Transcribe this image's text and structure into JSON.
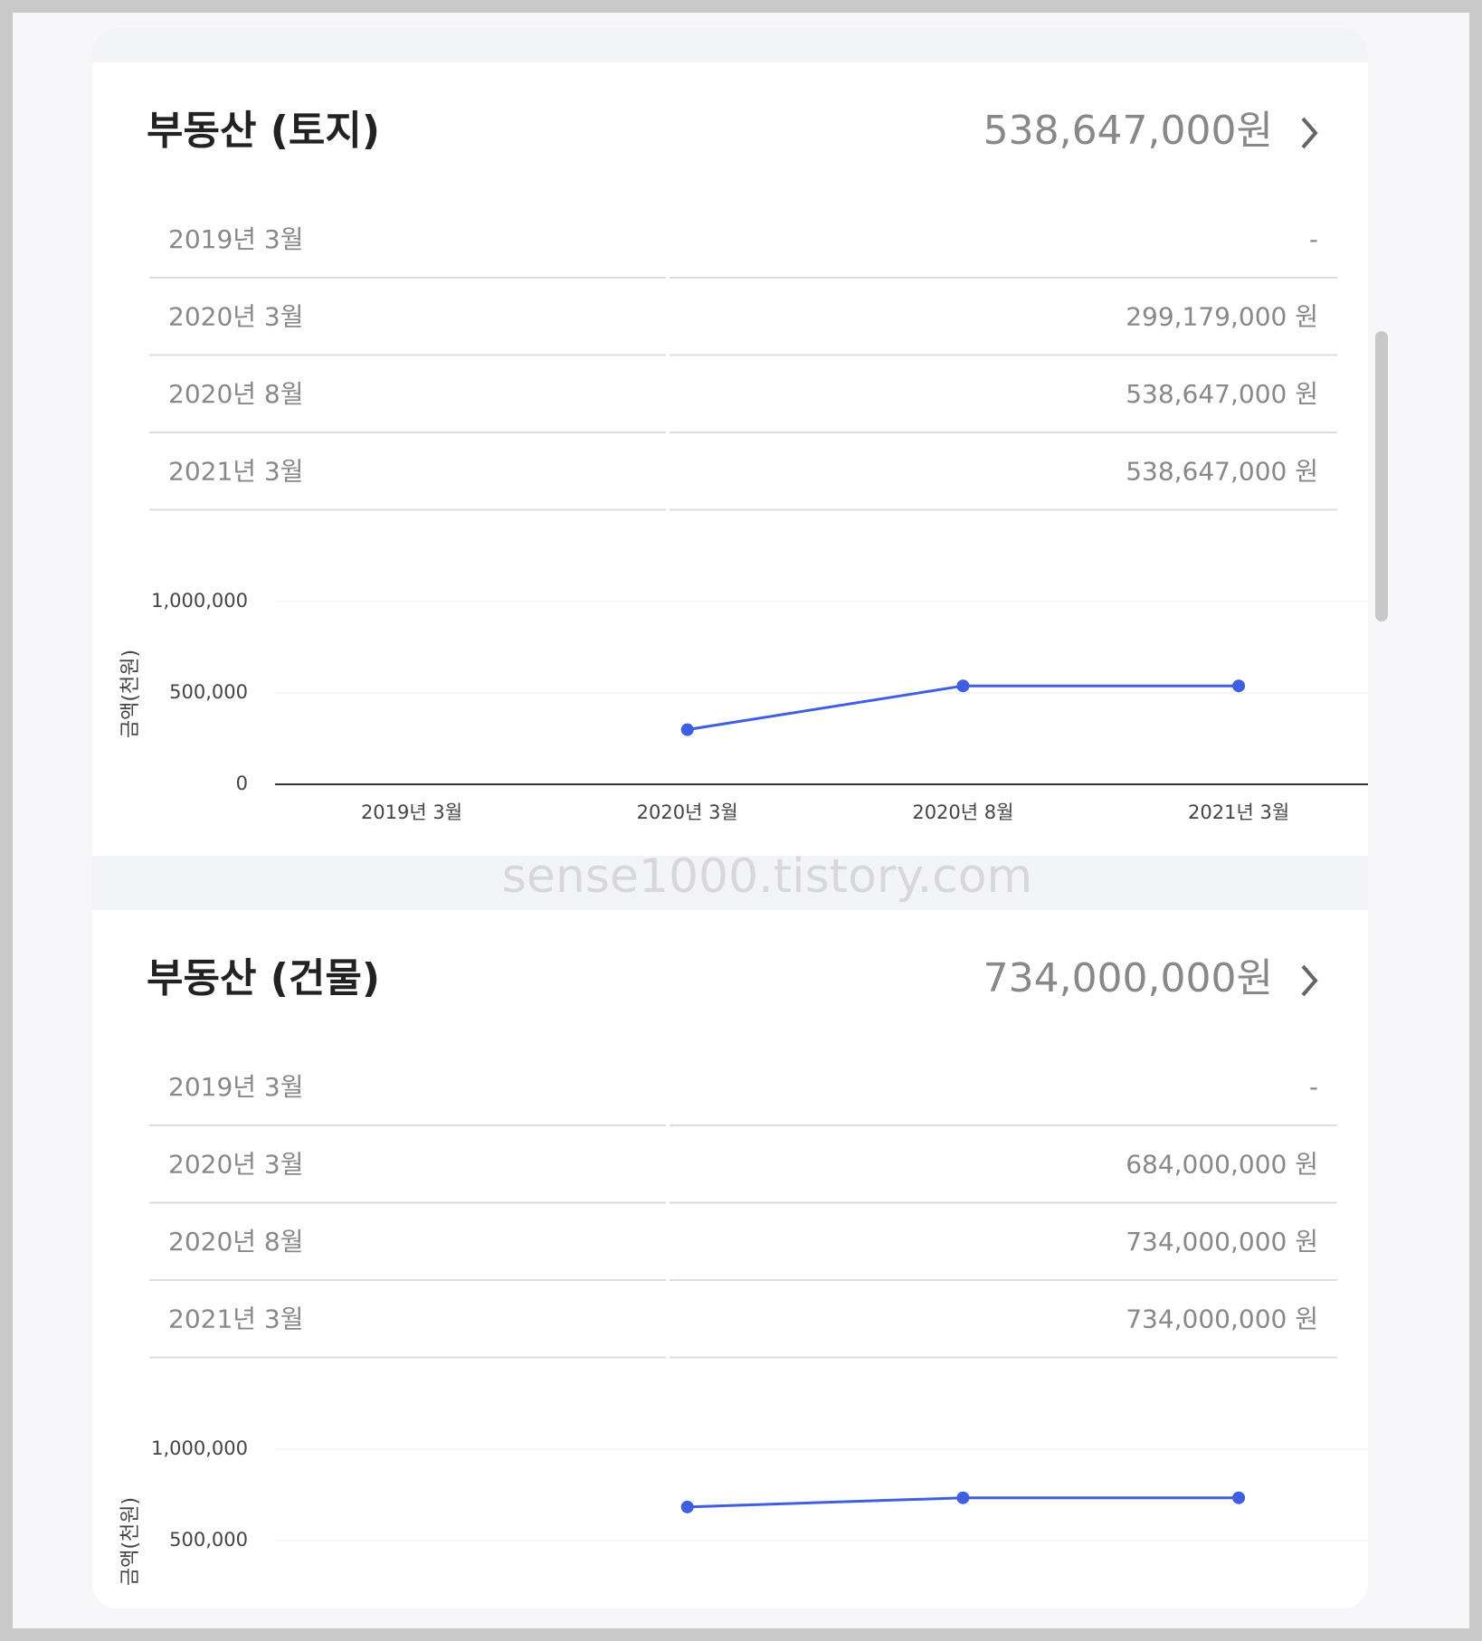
{
  "sections": [
    {
      "title": "부동산 (토지)",
      "total": "538,647,000원",
      "rows": [
        [
          "2019년 3월",
          "-"
        ],
        [
          "2020년 3월",
          "299,179,000 원"
        ],
        [
          "2020년 8월",
          "538,647,000 원"
        ],
        [
          "2021년 3월",
          "538,647,000 원"
        ]
      ],
      "chart_data": {
        "type": "line",
        "y_label": "금액(천원)",
        "categories": [
          "2019년 3월",
          "2020년 3월",
          "2020년 8월",
          "2021년 3월"
        ],
        "series": [
          {
            "color": "#3f5fe0",
            "values": [
              null,
              299179,
              538647,
              538647
            ]
          }
        ],
        "ylim": [
          0,
          1000000
        ],
        "yticks": [
          0,
          {
            "value": 500000,
            "label": "500,000"
          },
          {
            "value": 1000000,
            "label": "1,000,000"
          }
        ]
      }
    },
    {
      "title": "부동산 (건물)",
      "total": "734,000,000원",
      "rows": [
        [
          "2019년 3월",
          "-"
        ],
        [
          "2020년 3월",
          "684,000,000 원"
        ],
        [
          "2020년 8월",
          "734,000,000 원"
        ],
        [
          "2021년 3월",
          "734,000,000 원"
        ]
      ],
      "chart_data": {
        "type": "line",
        "y_label": "금액(천원)",
        "categories": [
          null,
          null,
          null,
          null
        ],
        "series": [
          {
            "color": "#3f5fe0",
            "values": [
              null,
              684000,
              734000,
              734000
            ]
          }
        ],
        "ylim": [
          0,
          1000000
        ],
        "yticks": [
          {
            "value": 500000,
            "label": "500,000"
          },
          {
            "value": 1000000,
            "label": "1,000,000"
          }
        ]
      }
    }
  ],
  "watermark": "sense1000.tistory.com"
}
